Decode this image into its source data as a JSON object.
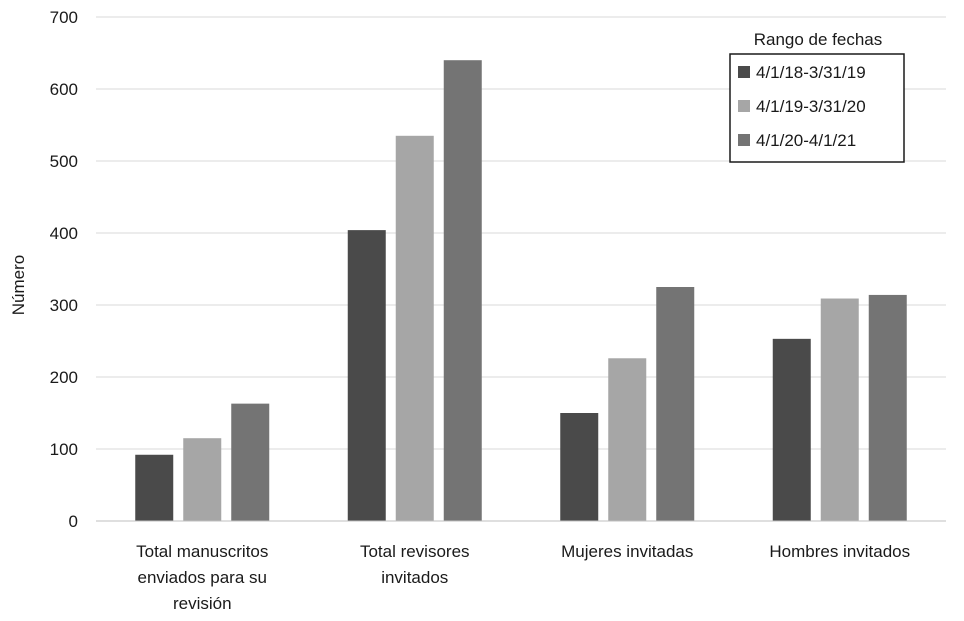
{
  "chart_data": {
    "type": "bar",
    "title": "",
    "xlabel": "",
    "ylabel": "Número",
    "ylim": [
      0,
      700
    ],
    "yticks": [
      "0",
      "100",
      "200",
      "300",
      "400",
      "500",
      "600",
      "700"
    ],
    "grid": true,
    "legend_title": "Rango de fechas",
    "legend_position": "top-right",
    "categories": [
      [
        "Total manuscritos",
        "enviados para su",
        "revisión"
      ],
      [
        "Total revisores",
        "invitados"
      ],
      [
        "Mujeres invitadas"
      ],
      [
        "Hombres invitados"
      ]
    ],
    "series": [
      {
        "name": "4/1/18-3/31/19",
        "color": "#4a4a4a",
        "values": [
          92,
          404,
          150,
          253
        ]
      },
      {
        "name": "4/1/19-3/31/20",
        "color": "#a6a6a6",
        "values": [
          115,
          535,
          226,
          309
        ]
      },
      {
        "name": "4/1/20-4/1/21",
        "color": "#747474",
        "values": [
          163,
          640,
          325,
          314
        ]
      }
    ]
  }
}
